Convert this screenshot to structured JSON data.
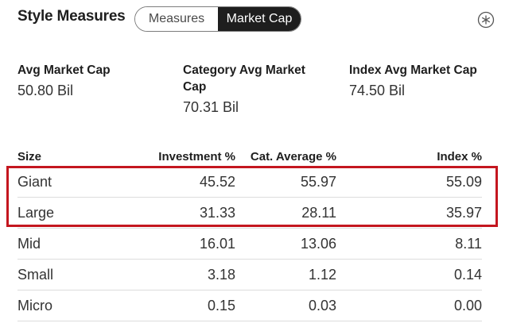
{
  "header": {
    "title": "Style Measures",
    "tabs": [
      {
        "label": "Measures",
        "active": false
      },
      {
        "label": "Market Cap",
        "active": true
      }
    ],
    "settings_icon": "asterisk-gear-icon"
  },
  "metrics": [
    {
      "label": "Avg Market Cap",
      "value": "50.80 Bil"
    },
    {
      "label": "Category Avg Market Cap",
      "value": "70.31 Bil"
    },
    {
      "label": "Index Avg Market Cap",
      "value": "74.50 Bil"
    }
  ],
  "table": {
    "columns": [
      "Size",
      "Investment %",
      "Cat. Average %",
      "Index %"
    ],
    "rows": [
      {
        "size": "Giant",
        "investment": "45.52",
        "cat_avg": "55.97",
        "index": "55.09"
      },
      {
        "size": "Large",
        "investment": "31.33",
        "cat_avg": "28.11",
        "index": "35.97"
      },
      {
        "size": "Mid",
        "investment": "16.01",
        "cat_avg": "13.06",
        "index": "8.11"
      },
      {
        "size": "Small",
        "investment": "3.18",
        "cat_avg": "1.12",
        "index": "0.14"
      },
      {
        "size": "Micro",
        "investment": "0.15",
        "cat_avg": "0.03",
        "index": "0.00"
      }
    ]
  },
  "colors": {
    "highlight": "#c4161f",
    "toggle_active_bg": "#1e1e1e"
  }
}
